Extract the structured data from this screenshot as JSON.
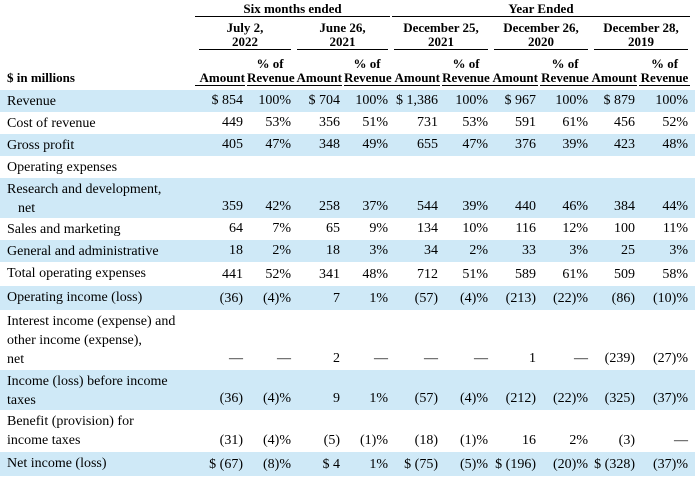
{
  "header": {
    "groups": [
      "Six months ended",
      "Year Ended"
    ],
    "periods": [
      [
        "July 2,",
        "2022"
      ],
      [
        "June 26,",
        "2021"
      ],
      [
        "December 25,",
        "2021"
      ],
      [
        "December 26,",
        "2020"
      ],
      [
        "December 28,",
        "2019"
      ]
    ],
    "amount": "Amount",
    "percent": [
      "% of",
      "Revenue"
    ],
    "units": "$ in millions"
  },
  "table": {
    "rows": [
      {
        "label": [
          "Revenue"
        ],
        "cells": [
          "$ 854",
          "100%",
          "$ 704",
          "100%",
          "$ 1,386",
          "100%",
          "$ 967",
          "100%",
          "$ 879",
          "100%"
        ]
      },
      {
        "label": [
          "Cost of revenue"
        ],
        "cells": [
          "449",
          "53%",
          "356",
          "51%",
          "731",
          "53%",
          "591",
          "61%",
          "456",
          "52%"
        ]
      },
      {
        "label": [
          "Gross profit"
        ],
        "cells": [
          "405",
          "47%",
          "348",
          "49%",
          "655",
          "47%",
          "376",
          "39%",
          "423",
          "48%"
        ]
      },
      {
        "label": [
          "Operating expenses"
        ]
      },
      {
        "label": [
          "Research and development,",
          "net"
        ],
        "cells": [
          "359",
          "42%",
          "258",
          "37%",
          "544",
          "39%",
          "440",
          "46%",
          "384",
          "44%"
        ]
      },
      {
        "label": [
          "Sales and marketing"
        ],
        "cells": [
          "64",
          "7%",
          "65",
          "9%",
          "134",
          "10%",
          "116",
          "12%",
          "100",
          "11%"
        ]
      },
      {
        "label": [
          "General and administrative"
        ],
        "cells": [
          "18",
          "2%",
          "18",
          "3%",
          "34",
          "2%",
          "33",
          "3%",
          "25",
          "3%"
        ]
      },
      {
        "label": [
          "Total operating expenses"
        ],
        "cells": [
          "441",
          "52%",
          "341",
          "48%",
          "712",
          "51%",
          "589",
          "61%",
          "509",
          "58%"
        ]
      },
      {
        "label": [
          "Operating income (loss)"
        ],
        "cells": [
          "(36)",
          "(4)%",
          "7",
          "1%",
          "(57)",
          "(4)%",
          "(213)",
          "(22)%",
          "(86)",
          "(10)%"
        ]
      },
      {
        "label": [
          "Interest income (expense) and",
          "other income (expense),",
          "net"
        ],
        "cells": [
          "—",
          "—",
          "2",
          "—",
          "—",
          "—",
          "1",
          "—",
          "(239)",
          "(27)%"
        ]
      },
      {
        "label": [
          "Income (loss) before income",
          "taxes"
        ],
        "cells": [
          "(36)",
          "(4)%",
          "9",
          "1%",
          "(57)",
          "(4)%",
          "(212)",
          "(22)%",
          "(325)",
          "(37)%"
        ]
      },
      {
        "label": [
          "Benefit (provision) for",
          "income taxes"
        ],
        "cells": [
          "(31)",
          "(4)%",
          "(5)",
          "(1)%",
          "(18)",
          "(1)%",
          "16",
          "2%",
          "(3)",
          "—"
        ]
      },
      {
        "label": [
          "Net income (loss)"
        ],
        "cells": [
          "$ (67)",
          "(8)%",
          "$ 4",
          "1%",
          "$ (75)",
          "(5)%",
          "$ (196)",
          "(20)%",
          "$ (328)",
          "(37)%"
        ]
      }
    ]
  }
}
